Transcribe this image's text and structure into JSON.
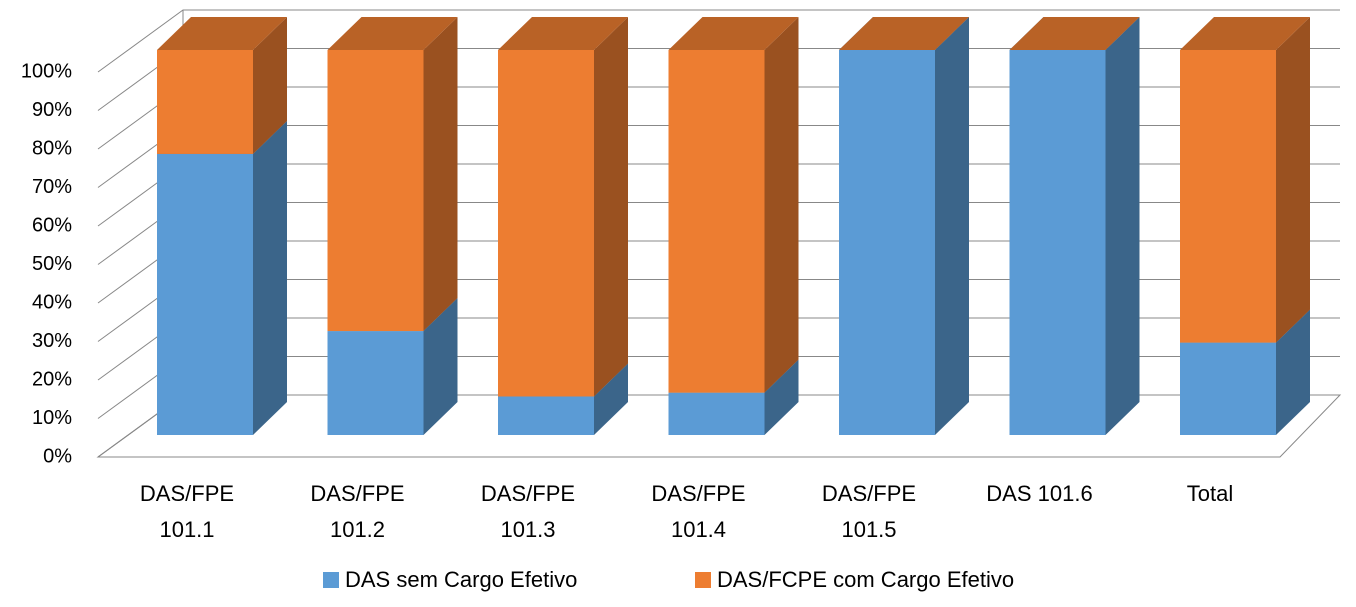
{
  "chart_data": {
    "type": "bar3d_stacked",
    "categories": [
      "DAS/FPE 101.1",
      "DAS/FPE 101.2",
      "DAS/FPE 101.3",
      "DAS/FPE 101.4",
      "DAS/FPE 101.5",
      "DAS 101.6",
      "Total"
    ],
    "series": [
      {
        "name": "DAS sem Cargo Efetivo",
        "color": "#5b9bd5",
        "values": [
          73,
          27,
          10,
          11,
          100,
          100,
          24
        ]
      },
      {
        "name": "DAS/FCPE com Cargo Efetivo",
        "color": "#ed7d31",
        "values": [
          27,
          73,
          90,
          89,
          0,
          0,
          76
        ]
      }
    ],
    "ylim": [
      0,
      100
    ],
    "yticks": [
      {
        "value": 0,
        "label": "0%"
      },
      {
        "value": 10,
        "label": "10%"
      },
      {
        "value": 20,
        "label": "20%"
      },
      {
        "value": 30,
        "label": "30%"
      },
      {
        "value": 40,
        "label": "40%"
      },
      {
        "value": 50,
        "label": "50%"
      },
      {
        "value": 60,
        "label": "60%"
      },
      {
        "value": 70,
        "label": "70%"
      },
      {
        "value": 80,
        "label": "80%"
      },
      {
        "value": 90,
        "label": "90%"
      },
      {
        "value": 100,
        "label": "100%"
      }
    ],
    "grid": true,
    "legend": "bottom"
  }
}
